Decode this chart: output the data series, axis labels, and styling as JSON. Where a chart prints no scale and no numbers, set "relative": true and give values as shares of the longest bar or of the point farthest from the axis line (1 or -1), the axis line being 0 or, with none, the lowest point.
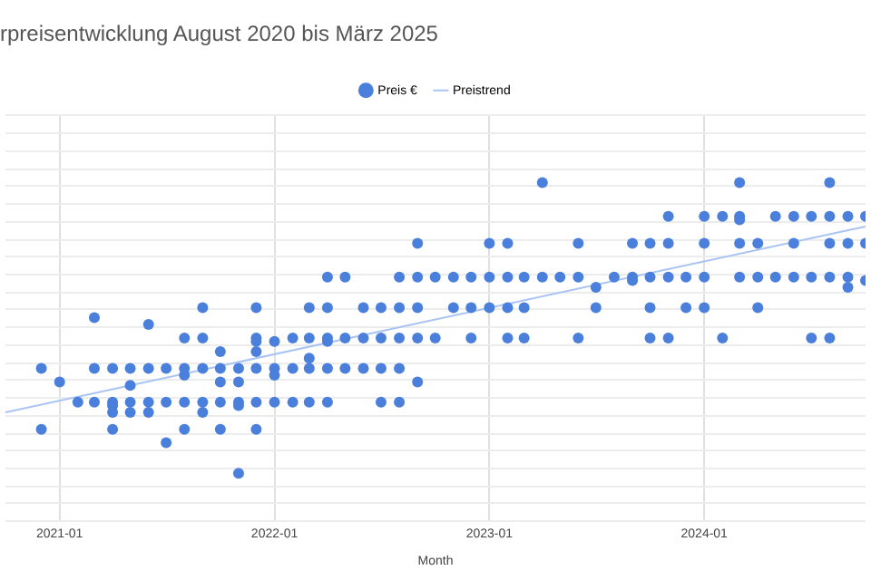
{
  "chart_data": {
    "type": "scatter",
    "title": "rpreisentwicklung August 2020 bis März 2025",
    "xlabel": "Month",
    "relative": true,
    "grid": true,
    "legend": "top",
    "xlim": [
      "2020-10",
      "2024-10"
    ],
    "xticks": [
      "2021-01",
      "2022-01",
      "2023-01",
      "2024-01"
    ],
    "series": [
      {
        "name": "Preis €",
        "marker": "circle",
        "color": "#4a7fdc",
        "x": [
          "2020-12",
          "2020-12",
          "2021-01",
          "2021-02",
          "2021-03",
          "2021-03",
          "2021-03",
          "2021-04",
          "2021-04",
          "2021-04",
          "2021-04",
          "2021-04",
          "2021-05",
          "2021-05",
          "2021-05",
          "2021-05",
          "2021-06",
          "2021-06",
          "2021-06",
          "2021-06",
          "2021-07",
          "2021-07",
          "2021-07",
          "2021-08",
          "2021-08",
          "2021-08",
          "2021-08",
          "2021-08",
          "2021-09",
          "2021-09",
          "2021-09",
          "2021-09",
          "2021-09",
          "2021-10",
          "2021-10",
          "2021-10",
          "2021-10",
          "2021-10",
          "2021-11",
          "2021-11",
          "2021-11",
          "2021-11",
          "2021-11",
          "2021-12",
          "2021-12",
          "2021-12",
          "2021-12",
          "2021-12",
          "2021-12",
          "2021-12",
          "2022-01",
          "2022-01",
          "2022-01",
          "2022-01",
          "2022-02",
          "2022-02",
          "2022-02",
          "2022-03",
          "2022-03",
          "2022-03",
          "2022-03",
          "2022-03",
          "2022-04",
          "2022-04",
          "2022-04",
          "2022-04",
          "2022-04",
          "2022-04",
          "2022-05",
          "2022-05",
          "2022-05",
          "2022-06",
          "2022-06",
          "2022-06",
          "2022-07",
          "2022-07",
          "2022-07",
          "2022-07",
          "2022-08",
          "2022-08",
          "2022-08",
          "2022-08",
          "2022-08",
          "2022-09",
          "2022-09",
          "2022-09",
          "2022-09",
          "2022-09",
          "2022-10",
          "2022-10",
          "2022-11",
          "2022-11",
          "2022-12",
          "2022-12",
          "2022-12",
          "2023-01",
          "2023-01",
          "2023-01",
          "2023-02",
          "2023-02",
          "2023-02",
          "2023-02",
          "2023-03",
          "2023-03",
          "2023-03",
          "2023-04",
          "2023-04",
          "2023-05",
          "2023-06",
          "2023-06",
          "2023-06",
          "2023-07",
          "2023-07",
          "2023-08",
          "2023-09",
          "2023-09",
          "2023-09",
          "2023-10",
          "2023-10",
          "2023-10",
          "2023-10",
          "2023-11",
          "2023-11",
          "2023-11",
          "2023-11",
          "2023-12",
          "2023-12",
          "2024-01",
          "2024-01",
          "2024-01",
          "2024-01",
          "2024-02",
          "2024-02",
          "2024-03",
          "2024-03",
          "2024-03",
          "2024-03",
          "2024-03",
          "2024-04",
          "2024-04",
          "2024-04",
          "2024-05",
          "2024-05",
          "2024-06",
          "2024-06",
          "2024-06",
          "2024-07",
          "2024-07",
          "2024-07",
          "2024-08",
          "2024-08",
          "2024-08",
          "2024-08",
          "2024-08",
          "2024-09",
          "2024-09",
          "2024-09",
          "2024-09",
          "2024-10",
          "2024-10",
          "2024-10"
        ],
        "values": [
          0.45,
          0.27,
          0.41,
          0.35,
          0.6,
          0.45,
          0.35,
          0.45,
          0.35,
          0.34,
          0.32,
          0.27,
          0.45,
          0.4,
          0.35,
          0.32,
          0.58,
          0.45,
          0.35,
          0.32,
          0.45,
          0.35,
          0.23,
          0.54,
          0.45,
          0.43,
          0.35,
          0.27,
          0.63,
          0.54,
          0.45,
          0.35,
          0.32,
          0.5,
          0.45,
          0.41,
          0.35,
          0.27,
          0.45,
          0.41,
          0.35,
          0.34,
          0.14,
          0.63,
          0.54,
          0.53,
          0.5,
          0.45,
          0.35,
          0.27,
          0.53,
          0.45,
          0.43,
          0.35,
          0.54,
          0.45,
          0.35,
          0.63,
          0.54,
          0.48,
          0.45,
          0.35,
          0.72,
          0.63,
          0.54,
          0.53,
          0.45,
          0.35,
          0.72,
          0.54,
          0.45,
          0.63,
          0.54,
          0.45,
          0.63,
          0.54,
          0.45,
          0.35,
          0.72,
          0.63,
          0.54,
          0.45,
          0.35,
          0.82,
          0.72,
          0.63,
          0.54,
          0.41,
          0.72,
          0.54,
          0.72,
          0.63,
          0.72,
          0.63,
          0.54,
          0.82,
          0.72,
          0.63,
          0.82,
          0.72,
          0.63,
          0.54,
          0.72,
          0.63,
          0.54,
          1,
          0.72,
          0.72,
          0.82,
          0.72,
          0.54,
          0.69,
          0.63,
          0.72,
          0.82,
          0.72,
          0.71,
          0.82,
          0.72,
          0.63,
          0.54,
          0.9,
          0.82,
          0.72,
          0.54,
          0.72,
          0.63,
          0.9,
          0.82,
          0.72,
          0.63,
          0.9,
          0.54,
          1,
          0.9,
          0.89,
          0.82,
          0.72,
          0.82,
          0.72,
          0.63,
          0.9,
          0.72,
          0.9,
          0.82,
          0.72,
          0.9,
          0.72,
          0.54,
          1,
          0.9,
          0.82,
          0.72,
          0.54,
          0.9,
          0.82,
          0.72,
          0.69,
          0.9,
          0.82,
          0.71
        ]
      },
      {
        "name": "Preistrend",
        "type": "line",
        "color": "#a9c4f2",
        "x": [
          "2020-10",
          "2024-10"
        ],
        "values": [
          0.32,
          0.87
        ]
      }
    ]
  }
}
